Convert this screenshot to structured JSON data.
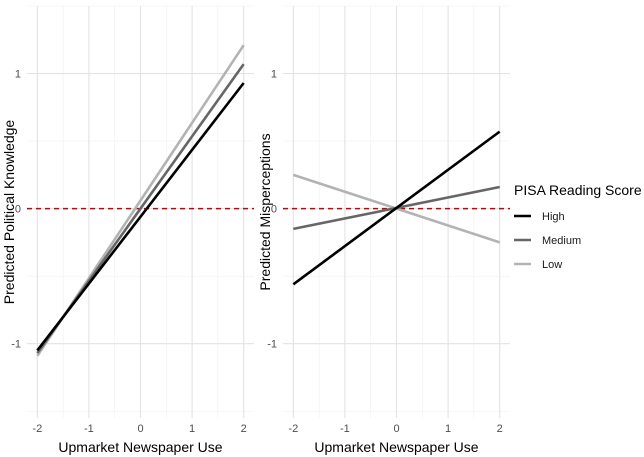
{
  "chart_data": [
    {
      "type": "line",
      "title": "",
      "xlabel": "Upmarket Newspaper Use",
      "ylabel": "Predicted Political Knowledge",
      "xlim": [
        -2.2,
        2.2
      ],
      "ylim": [
        -1.55,
        1.5
      ],
      "xticks": [
        -2,
        -1,
        0,
        1,
        2
      ],
      "xtick_labels": [
        "-2",
        "-1",
        "0",
        "1",
        "2"
      ],
      "yticks": [
        -1,
        0,
        1
      ],
      "ytick_labels": [
        "-1",
        "0",
        "1"
      ],
      "reference_line": {
        "y": 0,
        "style": "dashed",
        "color": "#cc0000"
      },
      "series": [
        {
          "name": "Low",
          "color": "#b3b3b3",
          "x": [
            -2,
            2
          ],
          "y": [
            -1.09,
            1.21
          ]
        },
        {
          "name": "Medium",
          "color": "#666666",
          "x": [
            -2,
            2
          ],
          "y": [
            -1.07,
            1.07
          ]
        },
        {
          "name": "High",
          "color": "#000000",
          "x": [
            -2,
            2
          ],
          "y": [
            -1.05,
            0.93
          ]
        }
      ]
    },
    {
      "type": "line",
      "title": "",
      "xlabel": "Upmarket Newspaper Use",
      "ylabel": "Predicted Misperceptions",
      "xlim": [
        -2.2,
        2.2
      ],
      "ylim": [
        -1.55,
        1.5
      ],
      "xticks": [
        -2,
        -1,
        0,
        1,
        2
      ],
      "xtick_labels": [
        "-2",
        "-1",
        "0",
        "1",
        "2"
      ],
      "yticks": [
        -1,
        0,
        1
      ],
      "ytick_labels": [
        "-1",
        "0",
        "1"
      ],
      "reference_line": {
        "y": 0,
        "style": "dashed",
        "color": "#cc0000"
      },
      "series": [
        {
          "name": "Low",
          "color": "#b3b3b3",
          "x": [
            -2,
            2
          ],
          "y": [
            0.25,
            -0.25
          ]
        },
        {
          "name": "Medium",
          "color": "#666666",
          "x": [
            -2,
            2
          ],
          "y": [
            -0.15,
            0.16
          ]
        },
        {
          "name": "High",
          "color": "#000000",
          "x": [
            -2,
            2
          ],
          "y": [
            -0.56,
            0.57
          ]
        }
      ]
    }
  ],
  "legend": {
    "title": "PISA Reading Score",
    "placement": "right",
    "items": [
      {
        "label": "High",
        "color": "#000000"
      },
      {
        "label": "Medium",
        "color": "#666666"
      },
      {
        "label": "Low",
        "color": "#b3b3b3"
      }
    ]
  }
}
